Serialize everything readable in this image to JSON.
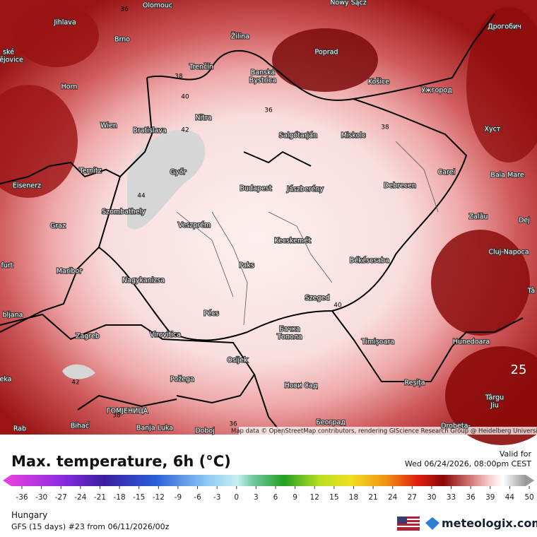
{
  "map": {
    "cities": [
      "Olomouc",
      "Jihlava",
      "Brno",
      "Žilina",
      "Nowy Sącz",
      "Дрогобич",
      "Poprad",
      "ské",
      "ějovice",
      "Trenčín",
      "Banská",
      "Bystrica",
      "Horn",
      "Košice",
      "Ужгород",
      "Wien",
      "Bratislava",
      "Nitra",
      "Salgótarján",
      "Miskolc",
      "Хуст",
      "Ternitz",
      "Győr",
      "Eisenerz",
      "Budapest",
      "Jászberény",
      "Debrecen",
      "Carei",
      "Baia Mare",
      "Szombathely",
      "Veszprém",
      "Graz",
      "Zalău",
      "Dej",
      "Kecskemét",
      "Cluj-Napoca",
      "furt",
      "Paks",
      "Békéscsaba",
      "Maribor",
      "Nagykanizsa",
      "Tâ",
      "Szeged",
      "bljana",
      "Pécs",
      "Zagreb",
      "Virovitica",
      "Бачка",
      "Топола",
      "Timișoara",
      "Hunedoara",
      "Osijek",
      "eka",
      "Požega",
      "Reșița",
      "Нови Сад",
      "Târgu",
      "Jiu",
      "ГОМЈЕНИЦА",
      "Bihać",
      "Banja Luka",
      "Doboj",
      "Београд",
      "Drobeta-",
      "Rab"
    ],
    "contour_labels": [
      "36",
      "38",
      "40",
      "42",
      "44",
      "36",
      "38",
      "40",
      "42",
      "38",
      "36",
      "25"
    ],
    "attribution": "Map data © OpenStreetMap contributors, rendering GIScience Research Group @ Heidelberg University"
  },
  "panel": {
    "title": "Max. temperature, 6h (°C)",
    "valid_for": "Valid for",
    "valid_time": "Wed 06/24/2026, 08:00pm CEST",
    "region": "Hungary",
    "model": "GFS (15 days) #23 from  06/11/2026/00z",
    "brand": "meteologix.com",
    "legend_ticks": [
      "-36",
      "-30",
      "-27",
      "-24",
      "-21",
      "-18",
      "-15",
      "-12",
      "-9",
      "-6",
      "-3",
      "0",
      "3",
      "6",
      "9",
      "12",
      "15",
      "18",
      "21",
      "24",
      "27",
      "30",
      "33",
      "36",
      "39",
      "44",
      "50"
    ]
  }
}
